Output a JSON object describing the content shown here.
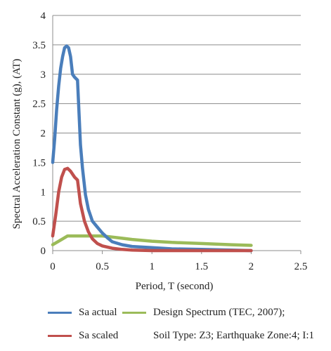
{
  "chart_data": {
    "type": "line",
    "title": "",
    "xlabel": "Period, T (second)",
    "ylabel": "Spectral Acceleration Constant (g), (AT)",
    "xlim": [
      0,
      2.5
    ],
    "ylim": [
      0,
      4
    ],
    "x_ticks": [
      "0",
      "0.5",
      "1",
      "1.5",
      "2",
      "2.5"
    ],
    "y_ticks": [
      "0",
      "0.5",
      "1",
      "1.5",
      "2",
      "2.5",
      "3",
      "3.5",
      "4"
    ],
    "grid": "horizontal",
    "series": [
      {
        "name": "Sa actual",
        "color": "#4a7ebb",
        "x": [
          0.0,
          0.02,
          0.04,
          0.06,
          0.08,
          0.1,
          0.12,
          0.14,
          0.16,
          0.18,
          0.2,
          0.22,
          0.25,
          0.28,
          0.3,
          0.33,
          0.36,
          0.4,
          0.45,
          0.5,
          0.55,
          0.6,
          0.7,
          0.8,
          1.0,
          1.2,
          1.5,
          1.8,
          2.0
        ],
        "y": [
          1.5,
          1.9,
          2.4,
          2.8,
          3.1,
          3.3,
          3.45,
          3.48,
          3.45,
          3.3,
          3.0,
          2.95,
          2.9,
          1.8,
          1.4,
          0.95,
          0.7,
          0.5,
          0.4,
          0.3,
          0.22,
          0.15,
          0.1,
          0.07,
          0.05,
          0.03,
          0.02,
          0.01,
          0.0
        ]
      },
      {
        "name": "Sa scaled",
        "color": "#c0504d",
        "x": [
          0.0,
          0.03,
          0.06,
          0.09,
          0.12,
          0.15,
          0.18,
          0.22,
          0.25,
          0.28,
          0.32,
          0.36,
          0.4,
          0.45,
          0.5,
          0.6,
          0.7,
          0.8,
          1.0,
          1.5,
          2.0
        ],
        "y": [
          0.25,
          0.6,
          1.0,
          1.25,
          1.38,
          1.4,
          1.35,
          1.25,
          1.2,
          0.8,
          0.5,
          0.32,
          0.2,
          0.12,
          0.08,
          0.04,
          0.02,
          0.01,
          0.0,
          0.0,
          0.0
        ]
      },
      {
        "name": "Design Spectrum (TEC, 2007); Soil Type: Z3; Earthquake Zone:4; I:1",
        "color": "#9bbb59",
        "x": [
          0.0,
          0.05,
          0.1,
          0.15,
          0.2,
          0.3,
          0.4,
          0.5,
          0.6,
          0.7,
          0.8,
          1.0,
          1.2,
          1.5,
          1.8,
          2.0
        ],
        "y": [
          0.1,
          0.15,
          0.2,
          0.25,
          0.25,
          0.25,
          0.25,
          0.25,
          0.23,
          0.21,
          0.19,
          0.16,
          0.14,
          0.12,
          0.1,
          0.09
        ]
      }
    ]
  },
  "legend": {
    "sa_actual": "Sa actual",
    "sa_scaled": "Sa scaled",
    "design_line1": "Design Spectrum (TEC, 2007);",
    "design_line2": "Soil Type: Z3; Earthquake Zone:4; I:1"
  }
}
